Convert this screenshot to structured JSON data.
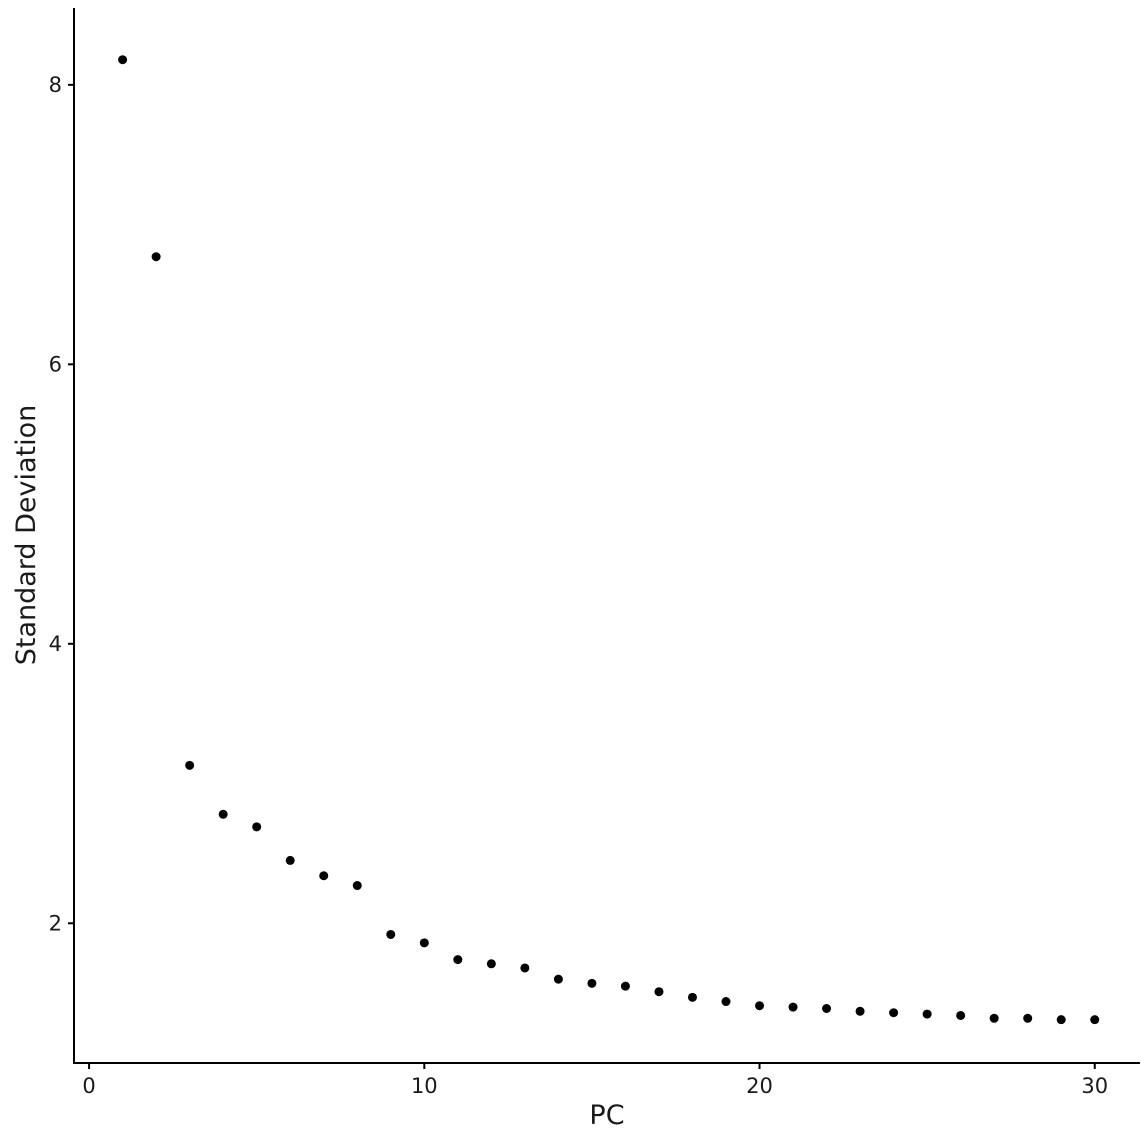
{
  "chart_data": {
    "type": "scatter",
    "title": "",
    "xlabel": "PC",
    "ylabel": "Standard Deviation",
    "xlim": [
      -0.45,
      31.35
    ],
    "ylim": [
      1.0,
      8.55
    ],
    "xticks": [
      0,
      10,
      20,
      30
    ],
    "yticks": [
      2,
      4,
      6,
      8
    ],
    "grid": false,
    "series": [
      {
        "x": [
          1,
          2,
          3,
          4,
          5,
          6,
          7,
          8,
          9,
          10,
          11,
          12,
          13,
          14,
          15,
          16,
          17,
          18,
          19,
          20,
          21,
          22,
          23,
          24,
          25,
          26,
          27,
          28,
          29,
          30
        ],
        "values": [
          8.18,
          6.77,
          3.13,
          2.78,
          2.69,
          2.45,
          2.34,
          2.27,
          1.92,
          1.86,
          1.74,
          1.71,
          1.68,
          1.6,
          1.57,
          1.55,
          1.51,
          1.47,
          1.44,
          1.41,
          1.4,
          1.39,
          1.37,
          1.36,
          1.35,
          1.34,
          1.32,
          1.32,
          1.31,
          1.31
        ]
      }
    ]
  }
}
